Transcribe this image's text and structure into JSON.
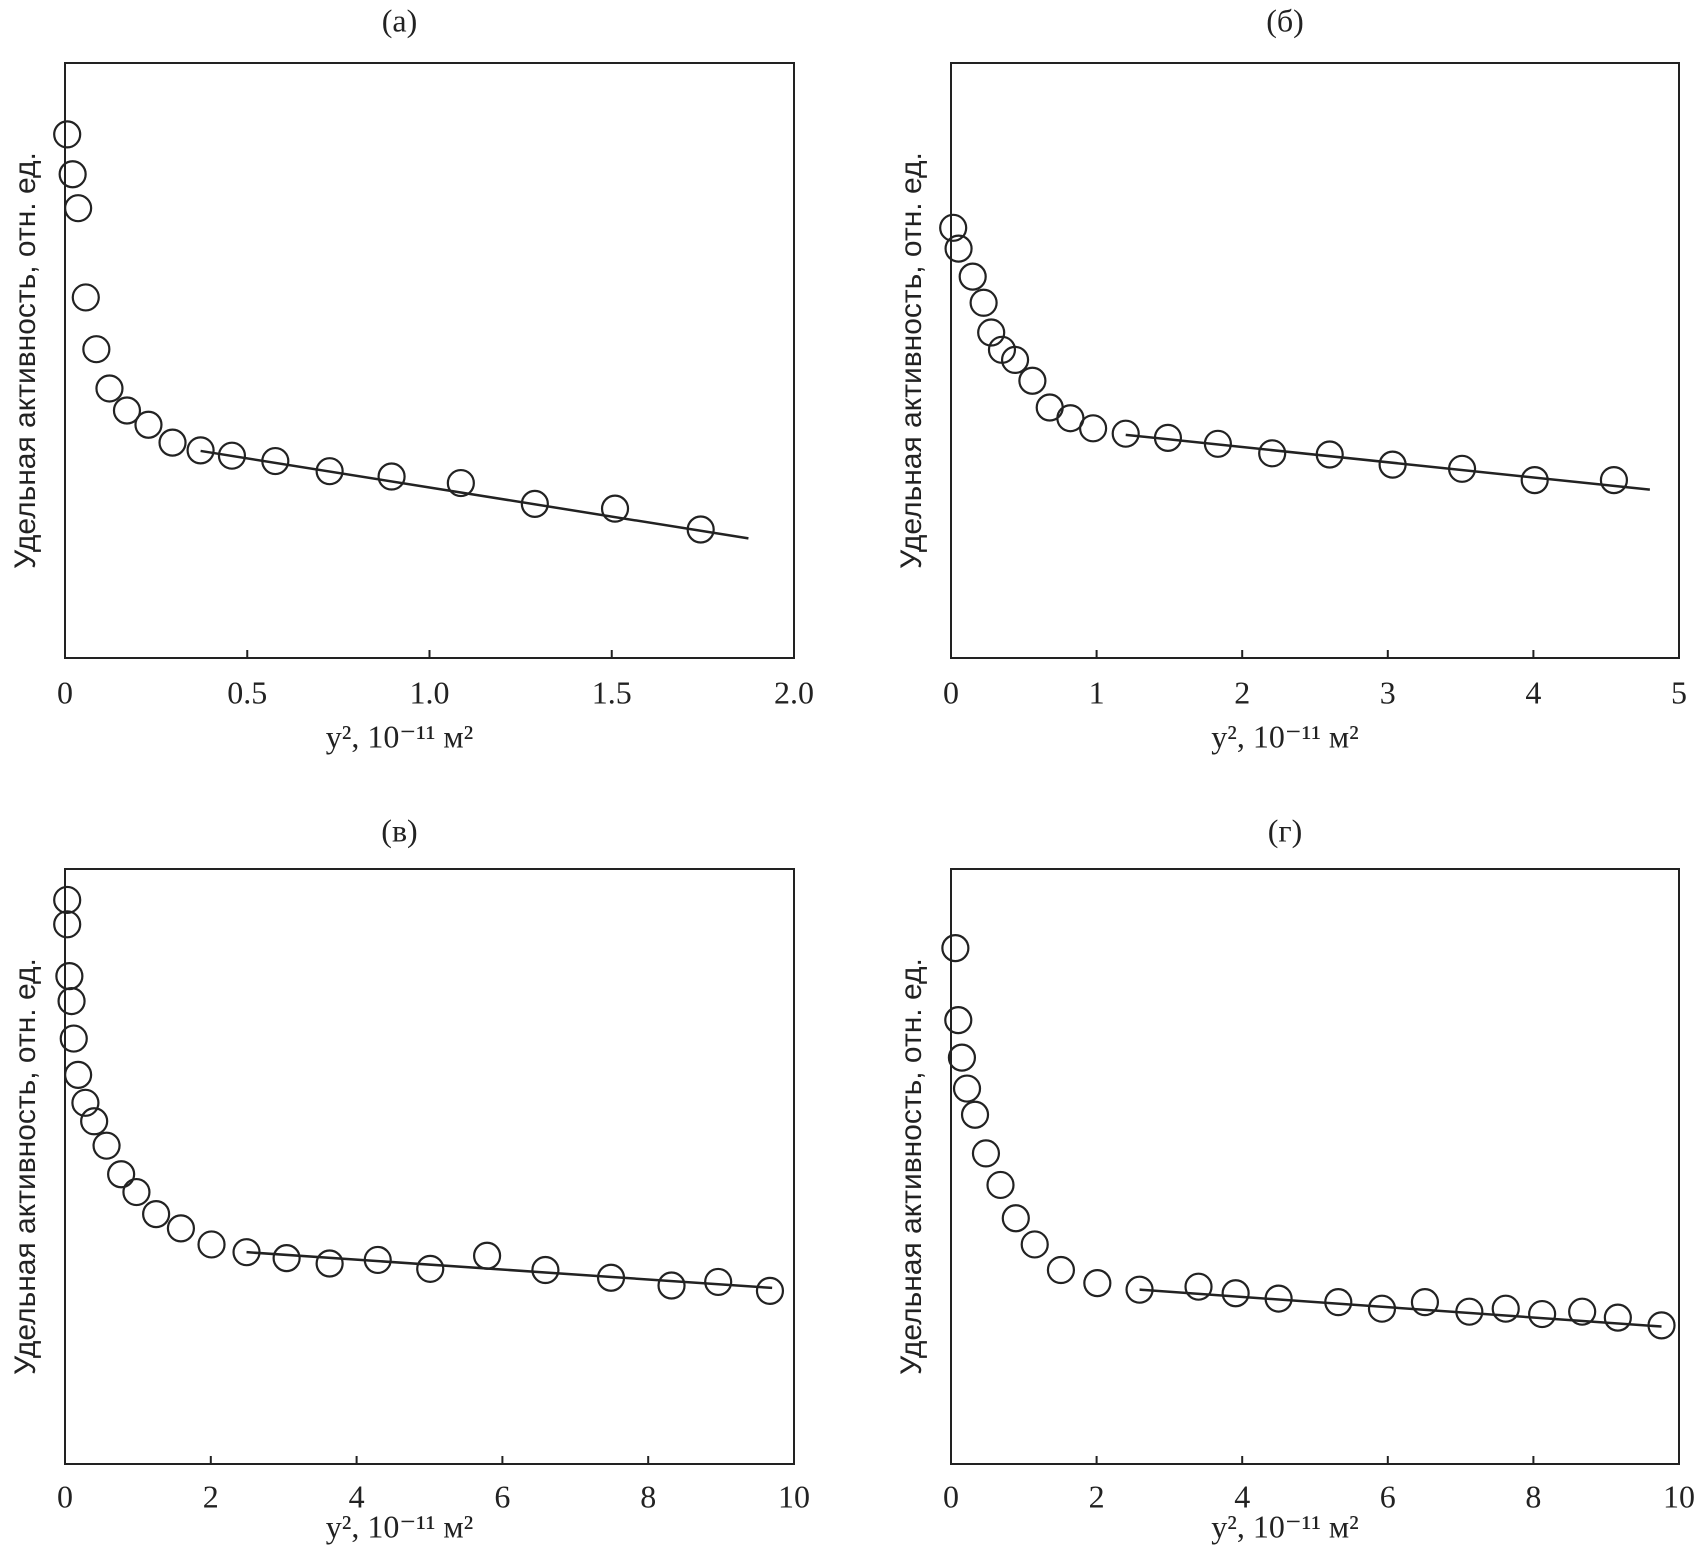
{
  "chart_data": [
    {
      "type": "scatter",
      "title": "(а)",
      "x_label": "y², 10⁻¹¹ м²",
      "y_label": "Удельная активность, отн. ед.",
      "x": [
        0.006,
        0.021,
        0.036,
        0.057,
        0.086,
        0.122,
        0.17,
        0.229,
        0.295,
        0.372,
        0.458,
        0.577,
        0.726,
        0.896,
        1.086,
        1.289,
        1.509,
        1.744
      ],
      "values": [
        88.0,
        81.3,
        75.6,
        60.6,
        51.9,
        45.3,
        41.6,
        39.2,
        36.2,
        34.9,
        34.0,
        33.1,
        31.4,
        30.5,
        29.4,
        25.9,
        25.1,
        21.6
      ],
      "fit": {
        "x": [
          0.372,
          1.875
        ],
        "values": [
          34.8,
          20.1
        ]
      },
      "xlim": [
        0,
        2
      ],
      "ylim": [
        0,
        100
      ],
      "xticks": [
        0,
        0.5,
        {
          "value": 1,
          "label": "1.0"
        },
        1.5,
        {
          "value": 2,
          "label": "2.0"
        }
      ],
      "color": "#222"
    },
    {
      "type": "scatter",
      "title": "(б)",
      "x_label": "y², 10⁻¹¹ м²",
      "y_label": "Удельная активность, отн. ед.",
      "x": [
        0.015,
        0.052,
        0.149,
        0.224,
        0.276,
        0.35,
        0.44,
        0.559,
        0.678,
        0.82,
        0.976,
        1.2,
        1.49,
        1.833,
        2.206,
        2.601,
        3.033,
        3.51,
        4.009,
        4.553
      ],
      "values": [
        72.3,
        68.8,
        64.1,
        59.7,
        54.7,
        51.8,
        50.1,
        46.6,
        42.1,
        40.3,
        38.6,
        37.7,
        37.0,
        36.0,
        34.4,
        34.2,
        32.5,
        31.8,
        29.9,
        29.9
      ],
      "fit": {
        "x": [
          1.2,
          4.8
        ],
        "values": [
          37.5,
          28.3
        ]
      },
      "xlim": [
        0,
        5
      ],
      "ylim": [
        0,
        100
      ],
      "xticks": [
        0,
        1,
        2,
        3,
        4,
        5
      ],
      "color": "#222"
    },
    {
      "type": "scatter",
      "title": "(в)",
      "x_label": "y², 10⁻¹¹ м²",
      "y_label": "Удельная активность, отн. ед.",
      "x": [
        0.03,
        0.03,
        0.06,
        0.09,
        0.12,
        0.18,
        0.28,
        0.4,
        0.57,
        0.77,
        0.98,
        1.25,
        1.59,
        2.01,
        2.49,
        3.04,
        3.63,
        4.29,
        5.01,
        5.79,
        6.59,
        7.49,
        8.32,
        8.96,
        9.67
      ],
      "values": [
        94.8,
        90.7,
        82.0,
        77.8,
        71.5,
        65.4,
        60.7,
        57.6,
        53.5,
        48.7,
        45.7,
        42.0,
        39.6,
        36.9,
        35.6,
        34.6,
        33.7,
        34.3,
        32.8,
        35.0,
        32.6,
        31.3,
        30.0,
        30.6,
        29.1
      ],
      "fit": {
        "x": [
          2.49,
          9.7
        ],
        "values": [
          35.6,
          29.6
        ]
      },
      "xlim": [
        0,
        10
      ],
      "ylim": [
        0,
        100
      ],
      "xticks": [
        0,
        2,
        4,
        6,
        8,
        10
      ],
      "color": "#222"
    },
    {
      "type": "scatter",
      "title": "(г)",
      "x_label": "y², 10⁻¹¹ м²",
      "y_label": "Удельная активность, отн. ед.",
      "x": [
        0.06,
        0.1,
        0.15,
        0.22,
        0.33,
        0.48,
        0.68,
        0.89,
        1.15,
        1.51,
        2.01,
        2.59,
        3.4,
        3.91,
        4.5,
        5.32,
        5.92,
        6.51,
        7.12,
        7.62,
        8.12,
        8.67,
        9.16,
        9.76
      ],
      "values": [
        86.7,
        74.6,
        68.3,
        63.1,
        58.7,
        52.2,
        46.9,
        41.3,
        36.9,
        32.6,
        30.4,
        29.3,
        29.8,
        28.7,
        27.8,
        27.2,
        26.1,
        27.2,
        25.6,
        26.1,
        25.2,
        25.6,
        24.6,
        23.3
      ],
      "fit": {
        "x": [
          2.59,
          9.76
        ],
        "values": [
          29.3,
          23.1
        ]
      },
      "xlim": [
        0,
        10
      ],
      "ylim": [
        0,
        100
      ],
      "xticks": [
        0,
        2,
        4,
        6,
        8,
        10
      ],
      "color": "#222"
    }
  ]
}
